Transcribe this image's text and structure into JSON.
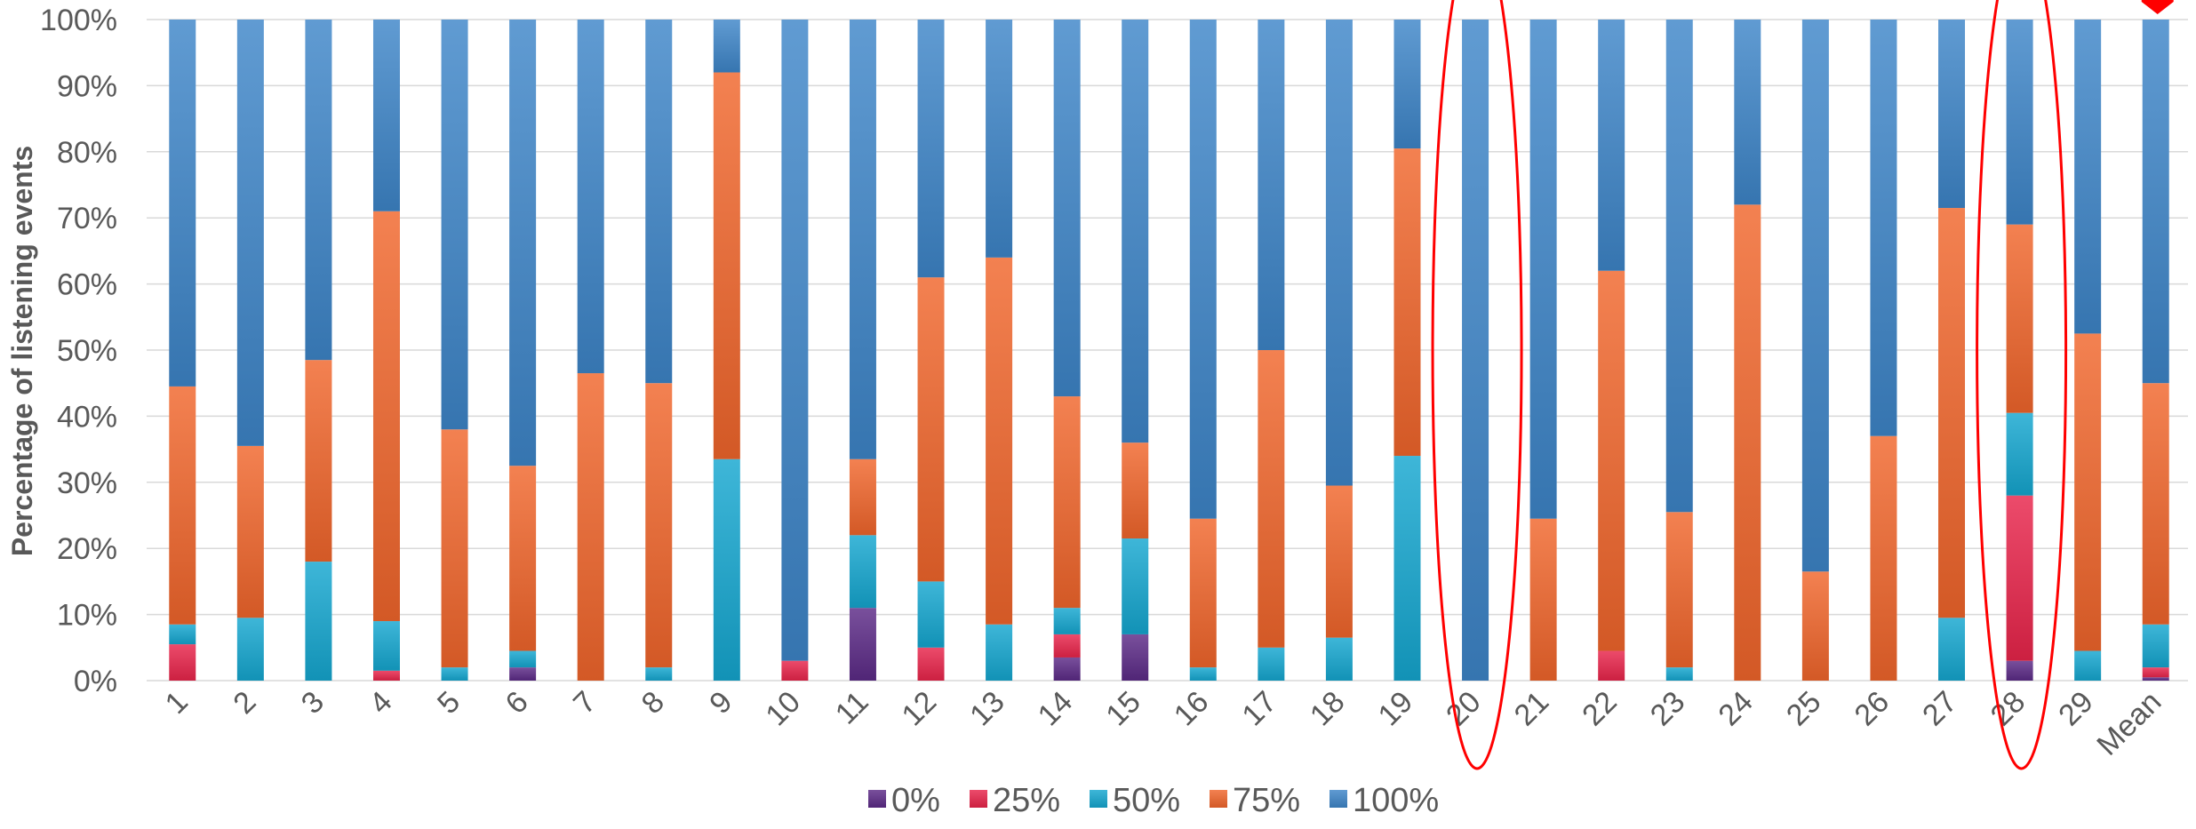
{
  "chart_data": {
    "type": "bar",
    "stacked": true,
    "percent_stacked": true,
    "title": "",
    "xlabel": "",
    "ylabel": "Percentage of listening events",
    "ylim": [
      0,
      100
    ],
    "yticks": [
      "0%",
      "10%",
      "20%",
      "30%",
      "40%",
      "50%",
      "60%",
      "70%",
      "80%",
      "90%",
      "100%"
    ],
    "grid": true,
    "legend_position": "bottom",
    "categories": [
      "1",
      "2",
      "3",
      "4",
      "5",
      "6",
      "7",
      "8",
      "9",
      "10",
      "11",
      "12",
      "13",
      "14",
      "15",
      "16",
      "17",
      "18",
      "19",
      "20",
      "21",
      "22",
      "23",
      "24",
      "25",
      "26",
      "27",
      "28",
      "29",
      "Mean"
    ],
    "series": [
      {
        "name": "0%",
        "color": "#5b2a86",
        "values": [
          0,
          0,
          0,
          0,
          0,
          2,
          0,
          0,
          0,
          0,
          11,
          0,
          0,
          3.5,
          7,
          0,
          0,
          0,
          0,
          0,
          0,
          0,
          0,
          0,
          0,
          0,
          0,
          3,
          0,
          0.5
        ]
      },
      {
        "name": "25%",
        "color": "#e8244a",
        "values": [
          5.5,
          0,
          0,
          1.5,
          0,
          0,
          0,
          0,
          0,
          3,
          0,
          5,
          0,
          3.5,
          0,
          0,
          0,
          0,
          0,
          0,
          0,
          4.5,
          0,
          0,
          0,
          0,
          0,
          25,
          0,
          1.5
        ]
      },
      {
        "name": "50%",
        "color": "#14a6cf",
        "values": [
          3,
          9.5,
          18,
          7.5,
          2,
          2.5,
          0,
          2,
          33.5,
          0,
          11,
          10,
          8.5,
          4,
          14.5,
          2,
          5,
          6.5,
          34,
          0,
          0,
          0,
          2,
          0,
          0,
          0,
          9.5,
          12.5,
          4.5,
          6.5
        ]
      },
      {
        "name": "75%",
        "color": "#f0652b",
        "values": [
          36,
          26,
          30.5,
          62,
          36,
          28,
          46.5,
          43,
          58.5,
          0,
          11.5,
          46,
          55.5,
          32,
          14.5,
          22.5,
          45,
          23,
          46.5,
          0,
          24.5,
          57.5,
          23.5,
          72,
          16.5,
          37,
          62,
          28.5,
          48,
          36.5
        ]
      },
      {
        "name": "100%",
        "color": "#3d85c8",
        "values": [
          55.5,
          64.5,
          51.5,
          29,
          62,
          67.5,
          53.5,
          55,
          8,
          97,
          66.5,
          39,
          36,
          57,
          64,
          75.5,
          50,
          70.5,
          19.5,
          100,
          75.5,
          38,
          74.5,
          28,
          83.5,
          63,
          28.5,
          31,
          47.5,
          55
        ]
      }
    ],
    "annotations": [
      {
        "type": "ellipse",
        "target_category": "20",
        "color": "#ff0000"
      },
      {
        "type": "ellipse",
        "target_category": "28",
        "color": "#ff0000"
      },
      {
        "type": "marker",
        "target_category": "Mean",
        "color": "#ff0000"
      }
    ]
  }
}
